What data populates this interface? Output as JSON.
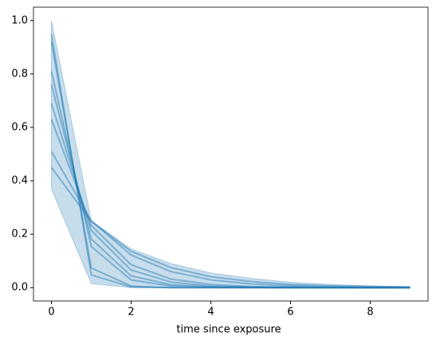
{
  "chart_data": {
    "type": "line",
    "x_label": "time since exposure",
    "x": [
      0,
      1,
      2,
      3,
      4,
      5,
      6,
      7,
      8,
      9
    ],
    "band": {
      "color": "#1f77b4",
      "upper": [
        1.0,
        0.25,
        0.145,
        0.09,
        0.055,
        0.035,
        0.02,
        0.012,
        0.007,
        0.004
      ],
      "lower": [
        0.37,
        0.015,
        0.0,
        0.0,
        0.0,
        0.0,
        0.0,
        0.0,
        0.0,
        0.0
      ]
    },
    "series": [
      {
        "color": "#1f77b4",
        "values": [
          0.45,
          0.248,
          0.136,
          0.075,
          0.041,
          0.023,
          0.012,
          0.007,
          0.004,
          0.002
        ]
      },
      {
        "color": "#1f77b4",
        "values": [
          0.51,
          0.25,
          0.122,
          0.06,
          0.029,
          0.014,
          0.007,
          0.003,
          0.002,
          0.001
        ]
      },
      {
        "color": "#1f77b4",
        "values": [
          0.63,
          0.233,
          0.086,
          0.032,
          0.012,
          0.004,
          0.002,
          0.001,
          0.0,
          0.0
        ]
      },
      {
        "color": "#1f77b4",
        "values": [
          0.69,
          0.214,
          0.066,
          0.021,
          0.006,
          0.002,
          0.001,
          0.0,
          0.0,
          0.0
        ]
      },
      {
        "color": "#1f77b4",
        "values": [
          0.76,
          0.182,
          0.044,
          0.011,
          0.003,
          0.001,
          0.0,
          0.0,
          0.0,
          0.0
        ]
      },
      {
        "color": "#1f77b4",
        "values": [
          0.81,
          0.154,
          0.029,
          0.006,
          0.001,
          0.0,
          0.0,
          0.0,
          0.0,
          0.0
        ]
      },
      {
        "color": "#1f77b4",
        "values": [
          0.92,
          0.074,
          0.006,
          0.0,
          0.0,
          0.0,
          0.0,
          0.0,
          0.0,
          0.0
        ]
      },
      {
        "color": "#1f77b4",
        "values": [
          0.95,
          0.048,
          0.002,
          0.0,
          0.0,
          0.0,
          0.0,
          0.0,
          0.0,
          0.0
        ]
      }
    ],
    "xlim": [
      -0.45,
      9.45
    ],
    "xticks": [
      0,
      2,
      4,
      6,
      8
    ],
    "ylim": [
      -0.05,
      1.05
    ],
    "yticks": [
      {
        "value": 0,
        "label": "0.0"
      },
      {
        "value": 0.2,
        "label": "0.2"
      },
      {
        "value": 0.4,
        "label": "0.4"
      },
      {
        "value": 0.6,
        "label": "0.6"
      },
      {
        "value": 0.8,
        "label": "0.8"
      },
      {
        "value": 1.0,
        "label": "1.0"
      }
    ]
  }
}
